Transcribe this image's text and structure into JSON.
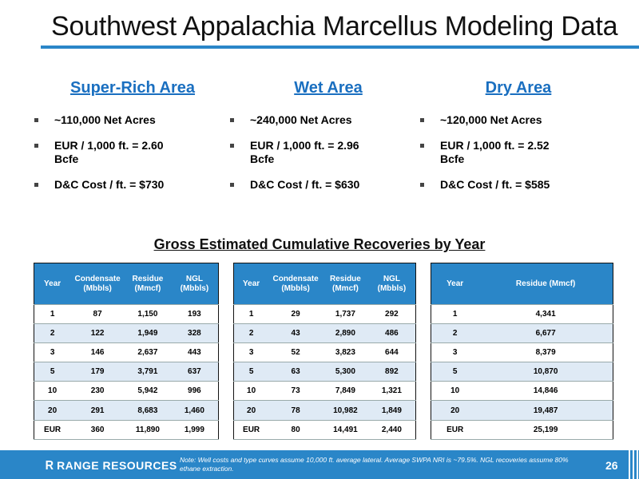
{
  "title": "Southwest Appalachia Marcellus Modeling Data",
  "areas": [
    {
      "name": "Super-Rich Area",
      "bullets": [
        "~110,000 Net Acres",
        "EUR / 1,000 ft. = 2.60 Bcfe",
        "D&C Cost / ft. = $730"
      ]
    },
    {
      "name": "Wet Area",
      "bullets": [
        "~240,000 Net Acres",
        "EUR / 1,000 ft. = 2.96 Bcfe",
        "D&C Cost / ft. = $630"
      ]
    },
    {
      "name": "Dry Area",
      "bullets": [
        "~120,000 Net Acres",
        "EUR / 1,000 ft. = 2.52 Bcfe",
        "D&C Cost / ft. = $585"
      ]
    }
  ],
  "subtitle": "Gross Estimated Cumulative Recoveries by Year",
  "tables": [
    {
      "headers": [
        "Year",
        "Condensate (Mbbls)",
        "Residue (Mmcf)",
        "NGL (Mbbls)"
      ],
      "rows": [
        [
          "1",
          "87",
          "1,150",
          "193"
        ],
        [
          "2",
          "122",
          "1,949",
          "328"
        ],
        [
          "3",
          "146",
          "2,637",
          "443"
        ],
        [
          "5",
          "179",
          "3,791",
          "637"
        ],
        [
          "10",
          "230",
          "5,942",
          "996"
        ],
        [
          "20",
          "291",
          "8,683",
          "1,460"
        ],
        [
          "EUR",
          "360",
          "11,890",
          "1,999"
        ]
      ]
    },
    {
      "headers": [
        "Year",
        "Condensate (Mbbls)",
        "Residue (Mmcf)",
        "NGL (Mbbls)"
      ],
      "rows": [
        [
          "1",
          "29",
          "1,737",
          "292"
        ],
        [
          "2",
          "43",
          "2,890",
          "486"
        ],
        [
          "3",
          "52",
          "3,823",
          "644"
        ],
        [
          "5",
          "63",
          "5,300",
          "892"
        ],
        [
          "10",
          "73",
          "7,849",
          "1,321"
        ],
        [
          "20",
          "78",
          "10,982",
          "1,849"
        ],
        [
          "EUR",
          "80",
          "14,491",
          "2,440"
        ]
      ]
    },
    {
      "headers": [
        "Year",
        "Residue (Mmcf)"
      ],
      "rows": [
        [
          "1",
          "4,341"
        ],
        [
          "2",
          "6,677"
        ],
        [
          "3",
          "8,379"
        ],
        [
          "5",
          "10,870"
        ],
        [
          "10",
          "14,846"
        ],
        [
          "20",
          "19,487"
        ],
        [
          "EUR",
          "25,199"
        ]
      ]
    }
  ],
  "footer": {
    "logo_text": "RANGE RESOURCES",
    "logo_mark": "R",
    "note": "Note: Well costs and type curves assume 10,000 ft. average lateral. Average SWPA NRI is ~79.5%. NGL recoveries assume 80% ethane extraction.",
    "page_number": "26"
  },
  "colors": {
    "accent": "#2a86c8",
    "heading": "#1a6fc0",
    "row_alt": "#dfeaf5"
  }
}
